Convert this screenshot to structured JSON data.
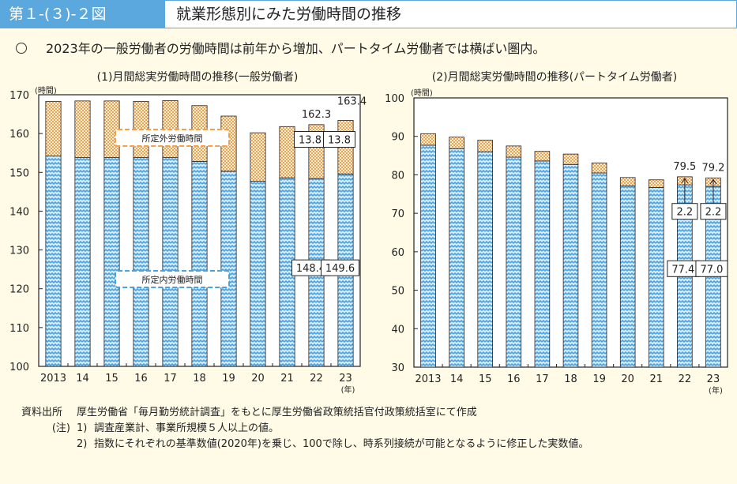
{
  "header": {
    "figure_number": "第１-(３)-２図",
    "figure_title": "就業形態別にみた労働時間の推移"
  },
  "headline": "2023年の一般労働者の労働時間は前年から増加、パートタイム労働者では横ばい圏内。",
  "colors": {
    "header_blue": "#5aa8dd",
    "overtime_orange": "#f5a04a",
    "scheduled_blue": "#4aa3e0",
    "background": "#fffbe6"
  },
  "chart_data": [
    {
      "type": "bar",
      "stacked": true,
      "title": "(1)月間総実労働時間の推移(一般労働者)",
      "ylabel": "(時間)",
      "xlabel": "(年)",
      "ylim": [
        100,
        170
      ],
      "yticks": [
        100,
        110,
        120,
        130,
        140,
        150,
        160,
        170
      ],
      "categories": [
        "2013",
        "14",
        "15",
        "16",
        "17",
        "18",
        "19",
        "20",
        "21",
        "22",
        "23"
      ],
      "series": [
        {
          "name": "所定内労働時間",
          "values": [
            154.2,
            153.8,
            153.8,
            153.8,
            153.8,
            152.8,
            150.3,
            147.7,
            148.6,
            148.4,
            149.6
          ]
        },
        {
          "name": "所定外労働時間",
          "values": [
            14.1,
            14.6,
            14.6,
            14.5,
            14.7,
            14.4,
            14.2,
            12.5,
            13.2,
            13.8,
            13.8
          ]
        }
      ],
      "totals": [
        168.3,
        168.4,
        168.4,
        168.3,
        168.5,
        167.2,
        164.5,
        160.2,
        161.8,
        162.3,
        163.4
      ],
      "annotations": {
        "total_labels": [
          {
            "category": "22",
            "text": "162.3"
          },
          {
            "category": "23",
            "text": "163.4"
          }
        ],
        "overtime_labels": [
          {
            "category": "22",
            "text": "13.8"
          },
          {
            "category": "23",
            "text": "13.8"
          }
        ],
        "scheduled_labels": [
          {
            "category": "22",
            "text": "148.4"
          },
          {
            "category": "23",
            "text": "149.6"
          }
        ],
        "legend_overtime": "所定外労働時間",
        "legend_scheduled": "所定内労働時間"
      }
    },
    {
      "type": "bar",
      "stacked": true,
      "title": "(2)月間総実労働時間の推移(パートタイム労働者)",
      "ylabel": "(時間)",
      "xlabel": "(年)",
      "ylim": [
        30,
        100
      ],
      "yticks": [
        30,
        40,
        50,
        60,
        70,
        80,
        90,
        100
      ],
      "categories": [
        "2013",
        "14",
        "15",
        "16",
        "17",
        "18",
        "19",
        "20",
        "21",
        "22",
        "23"
      ],
      "series": [
        {
          "name": "所定内労働時間",
          "values": [
            87.7,
            86.8,
            86.0,
            84.6,
            83.6,
            82.7,
            80.5,
            77.1,
            76.7,
            77.4,
            77.0
          ]
        },
        {
          "name": "所定外労働時間",
          "values": [
            3.0,
            3.0,
            3.0,
            2.9,
            2.5,
            2.7,
            2.6,
            2.2,
            2.0,
            2.2,
            2.2
          ]
        }
      ],
      "totals": [
        90.7,
        89.8,
        89.0,
        87.5,
        86.1,
        85.4,
        83.1,
        79.3,
        78.7,
        79.5,
        79.2
      ],
      "annotations": {
        "total_labels": [
          {
            "category": "22",
            "text": "79.5"
          },
          {
            "category": "23",
            "text": "79.2"
          }
        ],
        "overtime_labels": [
          {
            "category": "22",
            "text": "2.2"
          },
          {
            "category": "23",
            "text": "2.2"
          }
        ],
        "scheduled_labels": [
          {
            "category": "22",
            "text": "77.4"
          },
          {
            "category": "23",
            "text": "77.0"
          }
        ]
      }
    }
  ],
  "notes": {
    "source_label": "資料出所",
    "source_text": "厚生労働省「毎月勤労統計調査」をもとに厚生労働省政策統括官付政策統括室にて作成",
    "note_label": "(注)",
    "items": [
      {
        "num": "1)",
        "text": "調査産業計、事業所規模５人以上の値。"
      },
      {
        "num": "2)",
        "text": "指数にそれぞれの基準数値(2020年)を乗じ、100で除し、時系列接続が可能となるように修正した実数値。"
      }
    ]
  }
}
